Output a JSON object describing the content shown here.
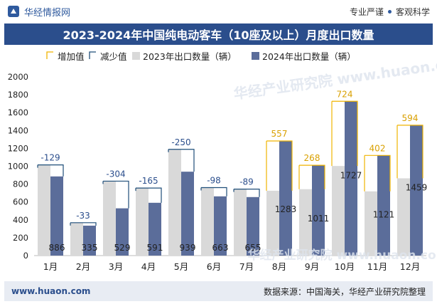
{
  "header": {
    "brand_name": "华经情报网",
    "tagline_left": "专业严谨",
    "tagline_right": "客观科学"
  },
  "title": "2023-2024年中国纯电动客车（10座及以上）月度出口数量",
  "footer": {
    "url": "www.huaon.com",
    "source": "数据来源：中国海关，华经产业研究院整理"
  },
  "watermark": "华经产业研究院 www.huaon.com",
  "colors": {
    "series_2023": "#d9d9d9",
    "series_2024": "#5b6d9a",
    "increase": "#f0b400",
    "decrease": "#1f4e79",
    "title_bg": "#2b4e8c"
  },
  "chart_data": {
    "type": "bar",
    "categories": [
      "1月",
      "2月",
      "3月",
      "4月",
      "5月",
      "6月",
      "7月",
      "8月",
      "9月",
      "10月",
      "11月",
      "12月"
    ],
    "series": [
      {
        "name": "2023年出口数量（辆）",
        "values": [
          1015,
          368,
          833,
          756,
          1189,
          761,
          744,
          726,
          743,
          1003,
          719,
          865
        ]
      },
      {
        "name": "2024年出口数量（辆）",
        "values": [
          886,
          335,
          529,
          591,
          939,
          663,
          655,
          1283,
          1011,
          1727,
          1121,
          1459
        ]
      }
    ],
    "change": [
      -129,
      -33,
      -304,
      -165,
      -250,
      -98,
      -89,
      557,
      268,
      724,
      402,
      594
    ],
    "legend": [
      "增加值",
      "减少值",
      "2023年出口数量（辆）",
      "2024年出口数量（辆）"
    ],
    "legend_position": "top",
    "ylim": [
      0,
      2000
    ],
    "yticks": [
      0,
      200,
      400,
      600,
      800,
      1000,
      1200,
      1400,
      1600,
      1800,
      2000
    ],
    "grid": false
  }
}
